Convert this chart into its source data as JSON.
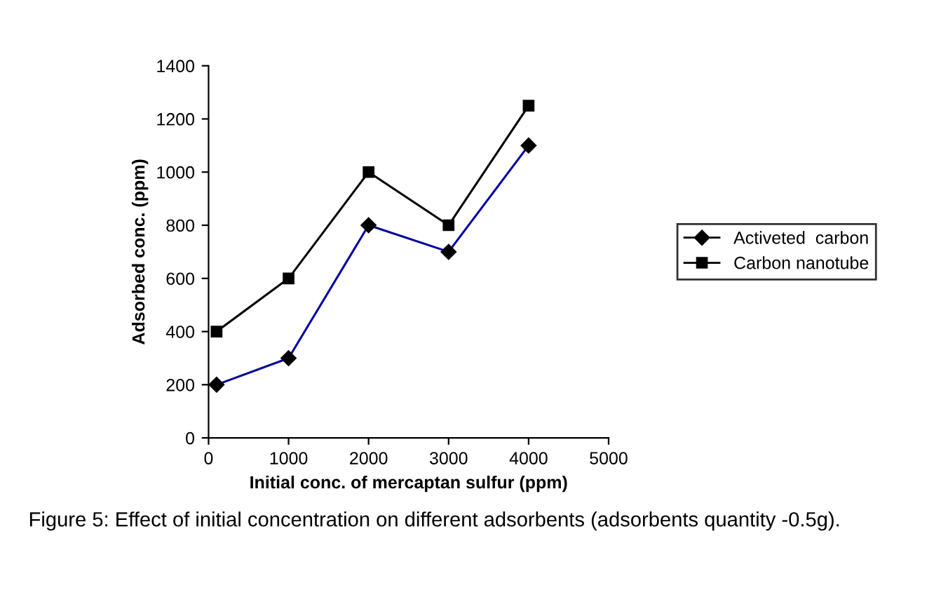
{
  "chart_data": {
    "type": "line",
    "xlabel": "Initial conc. of mercaptan sulfur (ppm)",
    "ylabel": "Adsorbed conc. (ppm)",
    "x": [
      100,
      1000,
      2000,
      3000,
      4000
    ],
    "series": [
      {
        "name": "Activeted  carbon",
        "color": "#0000a0",
        "marker": "diamond",
        "values": [
          200,
          300,
          800,
          700,
          1100
        ]
      },
      {
        "name": "Carbon nanotube",
        "color": "#000000",
        "marker": "square",
        "values": [
          400,
          600,
          1000,
          800,
          1250
        ]
      }
    ],
    "xlim": [
      0,
      5000
    ],
    "xticks": [
      0,
      1000,
      2000,
      3000,
      4000,
      5000
    ],
    "ylim": [
      0,
      1400
    ],
    "yticks": [
      0,
      200,
      400,
      600,
      800,
      1000,
      1200,
      1400
    ],
    "grid": false,
    "legend": "right",
    "line_style": "solid",
    "annotations": [
      "Figure 5: Effect of initial concentration on different adsorbents (adsorbents quantity -0.5g)."
    ]
  }
}
